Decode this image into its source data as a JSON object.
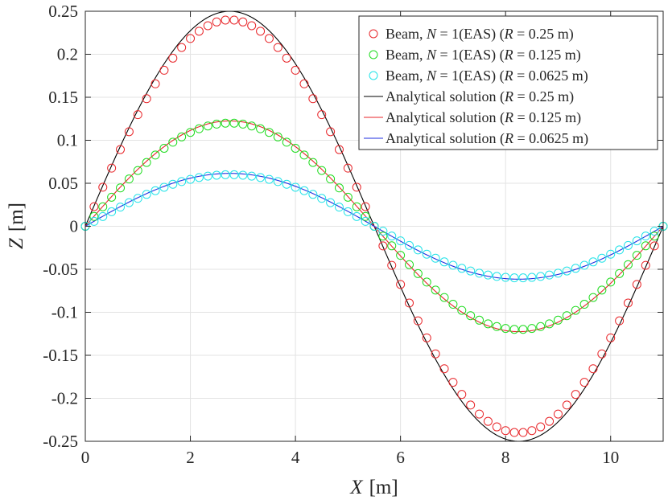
{
  "chart_data": {
    "type": "line",
    "title": "",
    "xlabel": {
      "var": "X",
      "unit": "[m]"
    },
    "ylabel": {
      "var": "Z",
      "unit": "[m]"
    },
    "xlim": [
      0,
      11
    ],
    "ylim": [
      -0.25,
      0.25
    ],
    "grid": true,
    "legend_position": "top-right",
    "x_ticks": [
      0,
      2,
      4,
      6,
      8,
      10
    ],
    "x_tick_labels": [
      "0",
      "2",
      "4",
      "6",
      "8",
      "10"
    ],
    "y_ticks": [
      0.25,
      0.2,
      0.15,
      0.1,
      0.05,
      0,
      -0.05,
      -0.1,
      -0.15,
      -0.2,
      -0.25
    ],
    "y_tick_labels": [
      "0.25",
      "0.2",
      "0.15",
      "0.1",
      "0.05",
      "0",
      "-0.05",
      "-0.1",
      "-0.15",
      "-0.2",
      "-0.25"
    ],
    "curve_length": 11,
    "marker_count": 67,
    "series": [
      {
        "name": "Beam, N = 1(EAS) (R = 0.25 m)",
        "legend_prefix": "Beam, ",
        "legend_var": "N",
        "legend_eq": " = 1(EAS) (",
        "legend_var2": "R",
        "legend_value": " = 0.25 m)",
        "kind": "marker",
        "amplitude": 0.24,
        "color": "#e8262a"
      },
      {
        "name": "Beam, N = 1(EAS) (R = 0.125 m)",
        "legend_prefix": "Beam, ",
        "legend_var": "N",
        "legend_eq": " = 1(EAS) (",
        "legend_var2": "R",
        "legend_value": " = 0.125 m)",
        "kind": "marker",
        "amplitude": 0.12,
        "color": "#1fdc1f"
      },
      {
        "name": "Beam, N = 1(EAS) (R = 0.0625 m)",
        "legend_prefix": "Beam, ",
        "legend_var": "N",
        "legend_eq": " = 1(EAS) (",
        "legend_var2": "R",
        "legend_value": " = 0.0625 m)",
        "kind": "marker",
        "amplitude": 0.06,
        "color": "#22e3e8"
      },
      {
        "name": "Analytical solution (R = 0.25 m)",
        "legend_prefix": "Analytical solution (",
        "legend_var": "R",
        "legend_value": " = 0.25 m)",
        "kind": "line",
        "amplitude": 0.25,
        "color": "#000000"
      },
      {
        "name": "Analytical solution (R = 0.125 m)",
        "legend_prefix": "Analytical solution (",
        "legend_var": "R",
        "legend_value": " = 0.125 m)",
        "kind": "line",
        "amplitude": 0.1225,
        "color": "#e8262a"
      },
      {
        "name": "Analytical solution (R = 0.0625 m)",
        "legend_prefix": "Analytical solution (",
        "legend_var": "R",
        "legend_value": " = 0.0625 m)",
        "kind": "line",
        "amplitude": 0.0615,
        "color": "#1f2fe0"
      }
    ]
  }
}
